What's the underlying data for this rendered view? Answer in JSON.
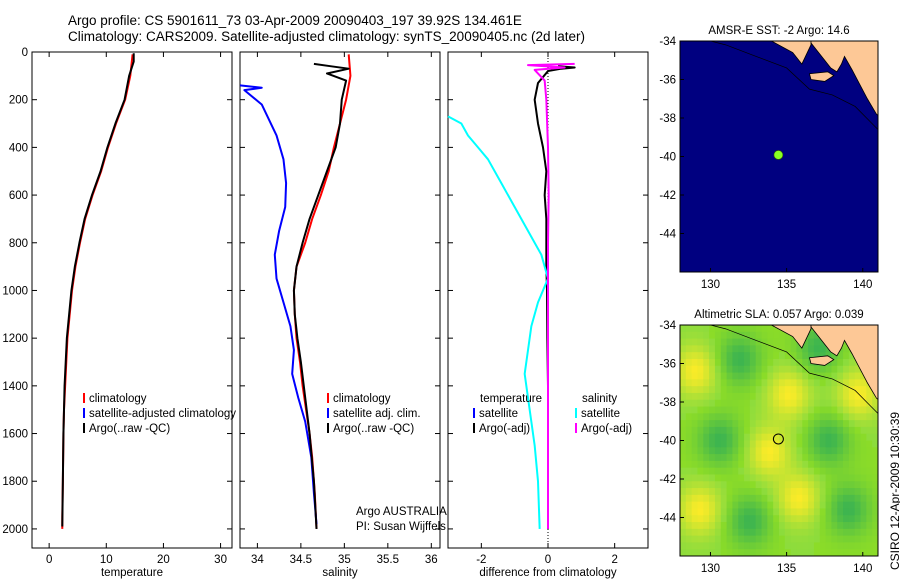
{
  "header": {
    "line1": "Argo profile: CS 5901611_73 03-Apr-2009 20090403_197 39.92S 134.461E",
    "line2": "Climatology: CARS2009. Satellite-adjusted climatology: synTS_20090405.nc (2d later)"
  },
  "side_text": "CSIRO 12-Apr-2009 10:30:39",
  "colors": {
    "climatology": "#ff0000",
    "satellite": "#0000ff",
    "argo": "#000000",
    "sal_satellite": "#00ffff",
    "sal_argo": "#ff00ff",
    "ocean_sst": "#000080",
    "land": "#fdc896",
    "marker_sst": "#88ff22"
  },
  "chart_data": [
    {
      "type": "line",
      "name": "temperature-panel",
      "xlabel": "temperature",
      "xlim": [
        -3,
        32
      ],
      "ylim": [
        2080,
        0
      ],
      "xticks": [
        0,
        10,
        20,
        30
      ],
      "yticks": [
        0,
        200,
        400,
        600,
        800,
        1000,
        1200,
        1400,
        1600,
        1800,
        2000
      ],
      "legend": [
        "climatology",
        "satellite-adjusted climatology",
        "Argo(..raw -QC)"
      ],
      "legend_position": "lower-right",
      "series": [
        {
          "name": "climatology",
          "color": "climatology",
          "x": [
            14.6,
            14.2,
            13.3,
            11.7,
            10.3,
            9.1,
            7.6,
            6.3,
            5.4,
            4.6,
            4.0,
            3.6,
            3.2,
            3.0,
            2.8,
            2.6,
            2.5,
            2.4,
            2.3,
            2.3
          ],
          "y": [
            10,
            100,
            200,
            300,
            400,
            500,
            600,
            700,
            800,
            900,
            1000,
            1100,
            1200,
            1300,
            1400,
            1500,
            1600,
            1800,
            1950,
            2000
          ]
        },
        {
          "name": "Argo(..raw -QC)",
          "color": "argo",
          "x": [
            14.8,
            14.8,
            14.0,
            13.2,
            11.6,
            10.2,
            9.0,
            7.5,
            6.2,
            5.3,
            4.5,
            3.9,
            3.5,
            3.1,
            2.9,
            2.7,
            2.6,
            2.5,
            2.4,
            2.3
          ],
          "y": [
            5,
            40,
            100,
            200,
            300,
            400,
            500,
            600,
            700,
            800,
            900,
            1000,
            1100,
            1200,
            1300,
            1400,
            1500,
            1600,
            1800,
            1990
          ]
        }
      ]
    },
    {
      "type": "line",
      "name": "salinity-panel",
      "xlabel": "salinity",
      "xlim": [
        33.8,
        36.1
      ],
      "ylim": [
        2080,
        0
      ],
      "xticks": [
        34,
        34.5,
        35,
        35.5,
        36
      ],
      "legend": [
        "climatology",
        "satellite adj. clim.",
        "Argo(..raw -QC)"
      ],
      "legend_position": "lower-right",
      "annotations": [
        "Argo AUSTRALIA",
        "PI: Susan Wijffels"
      ],
      "series": [
        {
          "name": "climatology",
          "color": "climatology",
          "x": [
            35.05,
            35.07,
            35.02,
            34.95,
            34.88,
            34.82,
            34.73,
            34.63,
            34.55,
            34.45,
            34.42,
            34.43,
            34.45,
            34.49,
            34.52,
            34.56,
            34.6,
            34.63,
            34.66,
            34.68
          ],
          "y": [
            10,
            100,
            200,
            300,
            400,
            500,
            600,
            700,
            800,
            900,
            1000,
            1100,
            1200,
            1300,
            1400,
            1500,
            1600,
            1700,
            1850,
            2000
          ]
        },
        {
          "name": "satellite adj. clim.",
          "color": "satellite",
          "x": [
            33.78,
            34.05,
            33.85,
            34.05,
            34.22,
            34.3,
            34.33,
            34.32,
            34.25,
            34.2,
            34.22,
            34.3,
            34.38,
            34.42,
            34.4,
            34.47,
            34.55,
            34.62,
            34.65,
            34.68
          ],
          "y": [
            140,
            150,
            160,
            220,
            350,
            450,
            550,
            650,
            750,
            850,
            950,
            1050,
            1150,
            1250,
            1350,
            1450,
            1550,
            1700,
            1850,
            1980
          ]
        },
        {
          "name": "Argo(..raw -QC)",
          "color": "argo",
          "x": [
            34.65,
            34.85,
            35.05,
            34.8,
            35.02,
            34.97,
            34.95,
            34.9,
            34.8,
            34.7,
            34.6,
            34.52,
            34.45,
            34.42,
            34.43,
            34.46,
            34.5,
            34.55,
            34.6,
            34.65,
            34.68
          ],
          "y": [
            50,
            60,
            70,
            90,
            120,
            200,
            300,
            400,
            500,
            600,
            700,
            800,
            900,
            1000,
            1100,
            1200,
            1300,
            1450,
            1600,
            1800,
            2000
          ]
        }
      ]
    },
    {
      "type": "line",
      "name": "difference-panel",
      "xlabel": "difference from climatology",
      "xlim": [
        -3,
        3
      ],
      "ylim": [
        2080,
        0
      ],
      "xticks": [
        -2,
        0,
        2
      ],
      "legend": [
        "temperature",
        "satellite",
        "Argo(-adj)",
        "salinity",
        "satellite",
        "Argo(-adj)"
      ],
      "legend_position": "lower",
      "series": [
        {
          "name": "temperature satellite",
          "color": "satellite",
          "x": [],
          "y": []
        },
        {
          "name": "temperature Argo(-adj)",
          "color": "argo",
          "x": [
            0.3,
            0.8,
            0.4,
            0.0,
            -0.3,
            -0.4,
            -0.3,
            -0.15,
            -0.05,
            -0.1,
            -0.05,
            -0.05,
            -0.05,
            -0.03,
            -0.02,
            0.0,
            0.0,
            0.0,
            0.0
          ],
          "y": [
            60,
            65,
            70,
            80,
            130,
            200,
            300,
            400,
            500,
            600,
            700,
            800,
            900,
            1000,
            1200,
            1400,
            1600,
            1800,
            2000
          ]
        },
        {
          "name": "salinity satellite",
          "color": "sal_satellite",
          "x": [
            -3.0,
            -2.6,
            -2.4,
            -2.1,
            -1.8,
            -1.4,
            -1.0,
            -0.6,
            -0.2,
            0.0,
            -0.3,
            -0.5,
            -0.6,
            -0.7,
            -0.6,
            -0.5,
            -0.4,
            -0.3,
            -0.25
          ],
          "y": [
            270,
            300,
            350,
            400,
            450,
            550,
            650,
            750,
            850,
            950,
            1050,
            1150,
            1250,
            1350,
            1450,
            1550,
            1650,
            1800,
            2000
          ]
        },
        {
          "name": "salinity Argo(-adj)",
          "color": "sal_argo",
          "x": [
            0.8,
            -0.6,
            0.5,
            -0.4,
            -0.1,
            -0.05,
            0.0,
            0.02,
            0.0,
            0.0,
            0.0,
            0.0,
            0.0
          ],
          "y": [
            50,
            55,
            65,
            75,
            120,
            200,
            400,
            600,
            800,
            1000,
            1400,
            1800,
            2000
          ]
        }
      ]
    },
    {
      "type": "heatmap",
      "name": "sst-map",
      "title": "AMSR-E SST: -2 Argo: 14.6",
      "xlim": [
        128,
        141
      ],
      "ylim": [
        -46,
        -34
      ],
      "xticks": [
        130,
        135,
        140
      ],
      "yticks": [
        -34,
        -36,
        -38,
        -40,
        -42,
        -44
      ],
      "marker": {
        "lon": 134.46,
        "lat": -39.92
      }
    },
    {
      "type": "heatmap",
      "name": "sla-map",
      "title": "Altimetric SLA: 0.057 Argo: 0.039",
      "xlim": [
        128,
        141
      ],
      "ylim": [
        -46,
        -34
      ],
      "xticks": [
        130,
        135,
        140
      ],
      "yticks": [
        -34,
        -36,
        -38,
        -40,
        -42,
        -44
      ],
      "marker": {
        "lon": 134.46,
        "lat": -39.92
      }
    }
  ]
}
